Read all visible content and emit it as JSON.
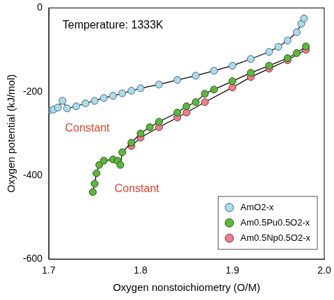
{
  "chart_data": {
    "type": "scatter",
    "x_label": "Oxygen nonstoichiometry (O/M)",
    "y_label": "Oxygen potential (kJ/mol)",
    "annotations": [
      "Temperature: 1333K",
      "Constant",
      "Constant"
    ],
    "xlim": [
      1.7,
      2.0
    ],
    "xticks": [
      1.7,
      1.8,
      1.9,
      {
        "value": 2.0,
        "label": "2.0"
      }
    ],
    "ylim": [
      -600,
      0
    ],
    "yticks": [
      -600,
      -400,
      -200,
      0
    ],
    "grid": false,
    "legend": "lower right",
    "series": [
      {
        "name": "AmO2-x",
        "color": "#a9dcef",
        "marker": "circle",
        "line_style": "solid",
        "x": [
          1.7,
          1.705,
          1.71,
          1.715,
          1.72,
          1.73,
          1.74,
          1.75,
          1.76,
          1.77,
          1.78,
          1.79,
          1.8,
          1.82,
          1.84,
          1.86,
          1.88,
          1.9,
          1.92,
          1.94,
          1.95,
          1.96,
          1.97,
          1.975,
          1.978
        ],
        "values": [
          -245,
          -243,
          -238,
          -222,
          -240,
          -235,
          -228,
          -222,
          -215,
          -210,
          -204,
          -198,
          -192,
          -183,
          -172,
          -162,
          -150,
          -138,
          -122,
          -105,
          -93,
          -78,
          -58,
          -38,
          -25
        ]
      },
      {
        "name": "Am0.5Pu0.5O2-x",
        "color": "#5cb83a",
        "marker": "circle",
        "line_style": "solid",
        "x": [
          1.748,
          1.75,
          1.752,
          1.755,
          1.76,
          1.77,
          1.775,
          1.778,
          1.78,
          1.79,
          1.8,
          1.81,
          1.82,
          1.84,
          1.85,
          1.86,
          1.87,
          1.88,
          1.9,
          1.92,
          1.94,
          1.96,
          1.97,
          1.98
        ],
        "values": [
          -440,
          -420,
          -395,
          -375,
          -365,
          -362,
          -365,
          -375,
          -345,
          -322,
          -300,
          -285,
          -272,
          -250,
          -235,
          -225,
          -205,
          -195,
          -175,
          -155,
          -138,
          -120,
          -108,
          -92
        ]
      },
      {
        "name": "Am0.5Np0.5O2-x",
        "color": "#f27a8a",
        "marker": "circle",
        "line_style": "solid",
        "x": [
          1.79,
          1.8,
          1.82,
          1.84,
          1.85,
          1.87,
          1.9,
          1.92,
          1.94,
          1.96,
          1.98
        ],
        "values": [
          -330,
          -310,
          -285,
          -262,
          -250,
          -225,
          -190,
          -165,
          -145,
          -125,
          -100
        ]
      }
    ]
  }
}
